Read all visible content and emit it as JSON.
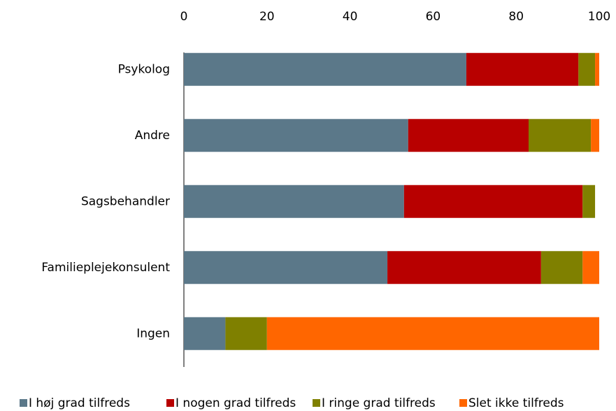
{
  "chart_data": {
    "type": "stacked_bar_horizontal",
    "categories": [
      "Psykolog",
      "Andre",
      "Sagsbehandler",
      "Familieplejekonsulent",
      "Ingen"
    ],
    "series": [
      {
        "name": "I høj grad tilfreds",
        "color": "#5b7889",
        "values": [
          68,
          54,
          53,
          49,
          10
        ]
      },
      {
        "name": "I nogen grad tilfreds",
        "color": "#b80000",
        "values": [
          27,
          29,
          43,
          37,
          0
        ]
      },
      {
        "name": "I ringe grad tilfreds",
        "color": "#7f8000",
        "values": [
          4,
          15,
          3,
          10,
          10
        ]
      },
      {
        "name": "Slet ikke tilfreds",
        "color": "#ff6600",
        "values": [
          1,
          2,
          0,
          4,
          80
        ]
      }
    ],
    "xlim": [
      0,
      100
    ],
    "xticks": [
      0,
      20,
      40,
      60,
      80,
      100
    ],
    "legend": "bottom"
  }
}
